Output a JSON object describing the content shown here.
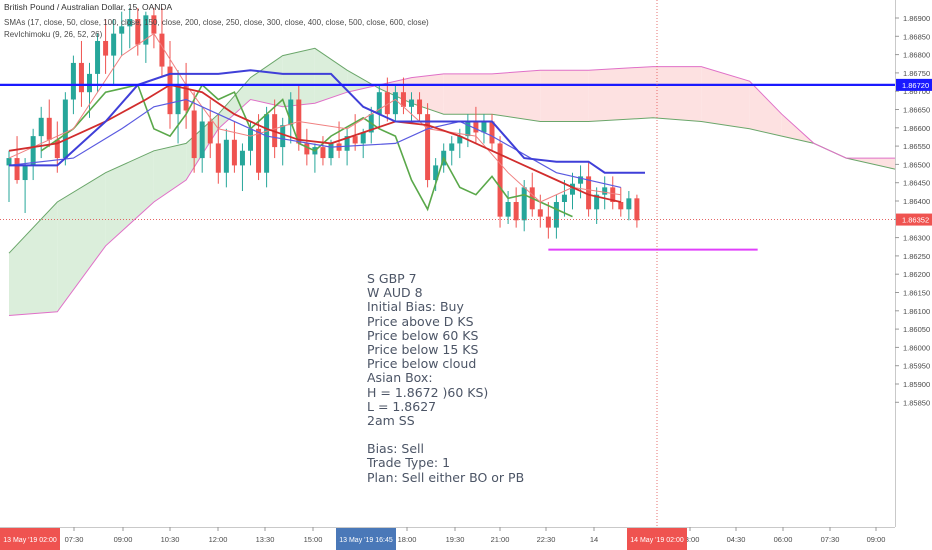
{
  "header": {
    "symbol": "British Pound / Australian Dollar, 15, OANDA",
    "sma_legend": "SMAs (17, close, 50, close, 100, close, 150, close, 200, close, 250, close, 300, close, 400, close, 500, close, 600, close)",
    "ichimoku_legend": "RevIchimoku (9, 26, 52, 26)"
  },
  "notes": [
    "S GBP 7",
    "W AUD 8",
    "Initial Bias: Buy",
    "Price above D KS",
    "Price below 60 KS",
    "Price below 15 KS",
    "Price below cloud",
    "Asian Box:",
    "H = 1.8672 )60 KS)",
    "L = 1.8627",
    "2am SS",
    "",
    "Bias: Sell",
    "Trade Type: 1",
    "Plan: Sell either BO or PB"
  ],
  "colors": {
    "up": "#26a69a",
    "down": "#ef5350",
    "hline": "#1a1aff",
    "kijun_blue": "#3f3fd8",
    "ma_red": "#d12d2d",
    "chikou": "#5aa84a",
    "asian_low": "#e040fb",
    "cloud_bull": "#dbeedb",
    "cloud_bear": "#fde1e1",
    "crosshair": "#e05050"
  },
  "chart_data": {
    "type": "candlestick",
    "y_range": [
      1.8581,
      1.8693
    ],
    "y_ticks": [
      "1.86900",
      "1.86850",
      "1.86800",
      "1.86750",
      "1.86700",
      "1.86650",
      "1.86600",
      "1.86550",
      "1.86500",
      "1.86450",
      "1.86400",
      "1.86350",
      "1.86300",
      "1.86250",
      "1.86200",
      "1.86150",
      "1.86100",
      "1.86050",
      "1.86000",
      "1.85950",
      "1.85900",
      "1.85850"
    ],
    "x_ticks": [
      "07:30",
      "09:00",
      "10:30",
      "12:00",
      "13:30",
      "15:00",
      "18:00",
      "19:30",
      "21:00",
      "22:30",
      "14",
      "03:00",
      "04:30",
      "06:00",
      "07:30",
      "09:00"
    ],
    "x_time_flags": [
      "13 May '19  02:00",
      "13 May '19  16:45",
      "14 May '19  02:00"
    ],
    "horizontal_line": {
      "price": 1.8672,
      "label": "1.86720"
    },
    "last_price": {
      "price": 1.86352,
      "label": "1.86352"
    },
    "asian_box_low": 1.8627,
    "candles": [
      [
        1.865,
        1.8654,
        1.864,
        1.8652
      ],
      [
        1.8652,
        1.8658,
        1.8645,
        1.8646
      ],
      [
        1.8646,
        1.8652,
        1.8637,
        1.865
      ],
      [
        1.865,
        1.866,
        1.8646,
        1.8658
      ],
      [
        1.8658,
        1.8666,
        1.8652,
        1.8663
      ],
      [
        1.8663,
        1.8668,
        1.8655,
        1.8657
      ],
      [
        1.8657,
        1.8662,
        1.8648,
        1.8652
      ],
      [
        1.8652,
        1.867,
        1.865,
        1.8668
      ],
      [
        1.8668,
        1.868,
        1.8664,
        1.8678
      ],
      [
        1.8678,
        1.8684,
        1.8666,
        1.867
      ],
      [
        1.867,
        1.8678,
        1.8663,
        1.8675
      ],
      [
        1.8675,
        1.8686,
        1.867,
        1.8684
      ],
      [
        1.8684,
        1.869,
        1.8675,
        1.868
      ],
      [
        1.868,
        1.869,
        1.8672,
        1.8686
      ],
      [
        1.8686,
        1.8692,
        1.868,
        1.8688
      ],
      [
        1.8688,
        1.8693,
        1.8682,
        1.869
      ],
      [
        1.869,
        1.8693,
        1.868,
        1.8683
      ],
      [
        1.8683,
        1.8692,
        1.8678,
        1.8691
      ],
      [
        1.8691,
        1.8693,
        1.8682,
        1.8686
      ],
      [
        1.8686,
        1.8693,
        1.8674,
        1.8677
      ],
      [
        1.8677,
        1.8684,
        1.866,
        1.8664
      ],
      [
        1.8664,
        1.8676,
        1.8656,
        1.8672
      ],
      [
        1.8672,
        1.8678,
        1.866,
        1.8665
      ],
      [
        1.8665,
        1.867,
        1.8648,
        1.8652
      ],
      [
        1.8652,
        1.8666,
        1.8648,
        1.8662
      ],
      [
        1.8662,
        1.8668,
        1.8652,
        1.8656
      ],
      [
        1.8656,
        1.8664,
        1.8645,
        1.8648
      ],
      [
        1.8648,
        1.866,
        1.8644,
        1.8657
      ],
      [
        1.8657,
        1.8662,
        1.8648,
        1.865
      ],
      [
        1.865,
        1.8656,
        1.8643,
        1.8654
      ],
      [
        1.8654,
        1.8662,
        1.865,
        1.866
      ],
      [
        1.866,
        1.8664,
        1.8646,
        1.8648
      ],
      [
        1.8648,
        1.8666,
        1.8644,
        1.8664
      ],
      [
        1.8664,
        1.8668,
        1.8652,
        1.8655
      ],
      [
        1.8655,
        1.8663,
        1.865,
        1.8661
      ],
      [
        1.8661,
        1.867,
        1.8656,
        1.8668
      ],
      [
        1.8668,
        1.8672,
        1.8654,
        1.8656
      ],
      [
        1.8656,
        1.866,
        1.865,
        1.8653
      ],
      [
        1.8653,
        1.8656,
        1.8648,
        1.8655
      ],
      [
        1.8655,
        1.8658,
        1.865,
        1.8652
      ],
      [
        1.8652,
        1.8657,
        1.865,
        1.8656
      ],
      [
        1.8656,
        1.8662,
        1.8652,
        1.8654
      ],
      [
        1.8654,
        1.866,
        1.865,
        1.8658
      ],
      [
        1.8658,
        1.8664,
        1.8654,
        1.8656
      ],
      [
        1.8656,
        1.866,
        1.8652,
        1.8659
      ],
      [
        1.8659,
        1.8666,
        1.8656,
        1.8664
      ],
      [
        1.8664,
        1.8672,
        1.866,
        1.867
      ],
      [
        1.867,
        1.8674,
        1.8662,
        1.8664
      ],
      [
        1.8664,
        1.8672,
        1.8662,
        1.867
      ],
      [
        1.867,
        1.8674,
        1.8664,
        1.8666
      ],
      [
        1.8666,
        1.867,
        1.8662,
        1.8668
      ],
      [
        1.8668,
        1.867,
        1.8662,
        1.8664
      ],
      [
        1.8664,
        1.8667,
        1.8644,
        1.8646
      ],
      [
        1.8646,
        1.8652,
        1.8643,
        1.865
      ],
      [
        1.865,
        1.8656,
        1.8648,
        1.8654
      ],
      [
        1.8654,
        1.8658,
        1.865,
        1.8656
      ],
      [
        1.8656,
        1.866,
        1.8652,
        1.8658
      ],
      [
        1.8658,
        1.8664,
        1.8655,
        1.8662
      ],
      [
        1.8662,
        1.8666,
        1.8656,
        1.8659
      ],
      [
        1.8659,
        1.8664,
        1.8656,
        1.8662
      ],
      [
        1.8662,
        1.8664,
        1.8654,
        1.8656
      ],
      [
        1.8656,
        1.8658,
        1.8633,
        1.8636
      ],
      [
        1.8636,
        1.8643,
        1.8634,
        1.864
      ],
      [
        1.864,
        1.8644,
        1.8633,
        1.8635
      ],
      [
        1.8635,
        1.8646,
        1.8632,
        1.8644
      ],
      [
        1.8644,
        1.8648,
        1.8636,
        1.8638
      ],
      [
        1.8638,
        1.8642,
        1.8633,
        1.8636
      ],
      [
        1.8636,
        1.864,
        1.863,
        1.8633
      ],
      [
        1.8633,
        1.8642,
        1.863,
        1.864
      ],
      [
        1.864,
        1.8646,
        1.8636,
        1.8642
      ],
      [
        1.8642,
        1.8648,
        1.8638,
        1.8645
      ],
      [
        1.8645,
        1.865,
        1.8641,
        1.8647
      ],
      [
        1.8647,
        1.8651,
        1.8636,
        1.8638
      ],
      [
        1.8638,
        1.8644,
        1.8634,
        1.8642
      ],
      [
        1.8642,
        1.8647,
        1.8638,
        1.8644
      ],
      [
        1.8644,
        1.8647,
        1.8638,
        1.864
      ],
      [
        1.864,
        1.8644,
        1.8636,
        1.8638
      ],
      [
        1.8638,
        1.8643,
        1.8635,
        1.8641
      ],
      [
        1.8641,
        1.8642,
        1.8633,
        1.8635
      ]
    ],
    "ma_red": [
      [
        0,
        1.8654
      ],
      [
        6,
        1.8656
      ],
      [
        12,
        1.8662
      ],
      [
        17,
        1.8668
      ],
      [
        20,
        1.8672
      ],
      [
        24,
        1.867
      ],
      [
        28,
        1.8664
      ],
      [
        32,
        1.866
      ],
      [
        36,
        1.8657
      ],
      [
        40,
        1.8656
      ],
      [
        44,
        1.8659
      ],
      [
        48,
        1.8662
      ],
      [
        52,
        1.8661
      ],
      [
        56,
        1.8658
      ],
      [
        60,
        1.8654
      ],
      [
        64,
        1.865
      ],
      [
        68,
        1.8646
      ],
      [
        72,
        1.8642
      ],
      [
        76,
        1.864
      ]
    ],
    "ma_blue_thin": [
      [
        0,
        1.865
      ],
      [
        8,
        1.8652
      ],
      [
        14,
        1.866
      ],
      [
        18,
        1.8666
      ],
      [
        22,
        1.8668
      ],
      [
        26,
        1.8664
      ],
      [
        32,
        1.8658
      ],
      [
        40,
        1.8655
      ],
      [
        48,
        1.8656
      ],
      [
        52,
        1.866
      ],
      [
        56,
        1.8662
      ],
      [
        60,
        1.8658
      ],
      [
        68,
        1.8648
      ],
      [
        76,
        1.8644
      ]
    ],
    "kijun_blue": [
      [
        0,
        1.865
      ],
      [
        6,
        1.865
      ],
      [
        12,
        1.8662
      ],
      [
        16,
        1.8672
      ],
      [
        20,
        1.8675
      ],
      [
        26,
        1.8675
      ],
      [
        30,
        1.8676
      ],
      [
        34,
        1.8675
      ],
      [
        40,
        1.8675
      ],
      [
        44,
        1.8666
      ],
      [
        48,
        1.8662
      ],
      [
        52,
        1.8662
      ],
      [
        60,
        1.8662
      ],
      [
        64,
        1.8652
      ],
      [
        68,
        1.8651
      ],
      [
        72,
        1.8651
      ],
      [
        74,
        1.8648
      ],
      [
        79,
        1.8648
      ]
    ],
    "tenkan_pink": [
      [
        0,
        1.8652
      ],
      [
        8,
        1.866
      ],
      [
        14,
        1.868
      ],
      [
        18,
        1.8686
      ],
      [
        22,
        1.8672
      ],
      [
        26,
        1.866
      ],
      [
        30,
        1.8658
      ],
      [
        36,
        1.8662
      ],
      [
        42,
        1.866
      ],
      [
        48,
        1.8668
      ],
      [
        52,
        1.866
      ],
      [
        58,
        1.8658
      ],
      [
        62,
        1.8648
      ],
      [
        66,
        1.864
      ],
      [
        70,
        1.8644
      ],
      [
        76,
        1.8642
      ]
    ],
    "chikou": [
      [
        4,
        1.8654
      ],
      [
        8,
        1.866
      ],
      [
        12,
        1.867
      ],
      [
        16,
        1.8672
      ],
      [
        18,
        1.866
      ],
      [
        20,
        1.8658
      ],
      [
        22,
        1.8664
      ],
      [
        24,
        1.8672
      ],
      [
        26,
        1.8668
      ],
      [
        28,
        1.867
      ],
      [
        30,
        1.866
      ],
      [
        32,
        1.8664
      ],
      [
        34,
        1.8668
      ],
      [
        36,
        1.8656
      ],
      [
        38,
        1.8654
      ],
      [
        40,
        1.8658
      ],
      [
        44,
        1.8663
      ],
      [
        46,
        1.866
      ],
      [
        48,
        1.8658
      ],
      [
        50,
        1.8646
      ],
      [
        52,
        1.8638
      ],
      [
        54,
        1.8652
      ],
      [
        56,
        1.8644
      ],
      [
        58,
        1.8642
      ],
      [
        60,
        1.8647
      ],
      [
        62,
        1.8641
      ],
      [
        64,
        1.8642
      ],
      [
        66,
        1.864
      ],
      [
        70,
        1.8636
      ]
    ],
    "cloud_upper": [
      [
        0,
        1.8626
      ],
      [
        6,
        1.864
      ],
      [
        12,
        1.8648
      ],
      [
        18,
        1.8654
      ],
      [
        22,
        1.8656
      ],
      [
        26,
        1.8664
      ],
      [
        30,
        1.8674
      ],
      [
        34,
        1.868
      ],
      [
        38,
        1.8682
      ],
      [
        42,
        1.8676
      ],
      [
        46,
        1.8671
      ],
      [
        50,
        1.8667
      ],
      [
        54,
        1.8664
      ],
      [
        60,
        1.8664
      ],
      [
        66,
        1.8662
      ],
      [
        72,
        1.8662
      ],
      [
        80,
        1.8663
      ],
      [
        86,
        1.8662
      ],
      [
        92,
        1.866
      ],
      [
        96,
        1.8658
      ],
      [
        100,
        1.8656
      ],
      [
        104,
        1.8652
      ],
      [
        108,
        1.865
      ],
      [
        112,
        1.8648
      ],
      [
        118,
        1.8646
      ],
      [
        122,
        1.8645
      ]
    ],
    "cloud_lower": [
      [
        0,
        1.8609
      ],
      [
        6,
        1.861
      ],
      [
        12,
        1.8628
      ],
      [
        18,
        1.864
      ],
      [
        22,
        1.8646
      ],
      [
        26,
        1.866
      ],
      [
        30,
        1.8668
      ],
      [
        34,
        1.8666
      ],
      [
        38,
        1.8667
      ],
      [
        42,
        1.867
      ],
      [
        46,
        1.8672
      ],
      [
        50,
        1.8674
      ],
      [
        54,
        1.8675
      ],
      [
        60,
        1.8675
      ],
      [
        66,
        1.8676
      ],
      [
        72,
        1.8676
      ],
      [
        80,
        1.8677
      ],
      [
        86,
        1.8677
      ],
      [
        92,
        1.8673
      ],
      [
        96,
        1.8664
      ],
      [
        100,
        1.8656
      ],
      [
        104,
        1.8652
      ],
      [
        108,
        1.8652
      ],
      [
        112,
        1.8652
      ],
      [
        118,
        1.8652
      ],
      [
        122,
        1.8652
      ]
    ]
  }
}
